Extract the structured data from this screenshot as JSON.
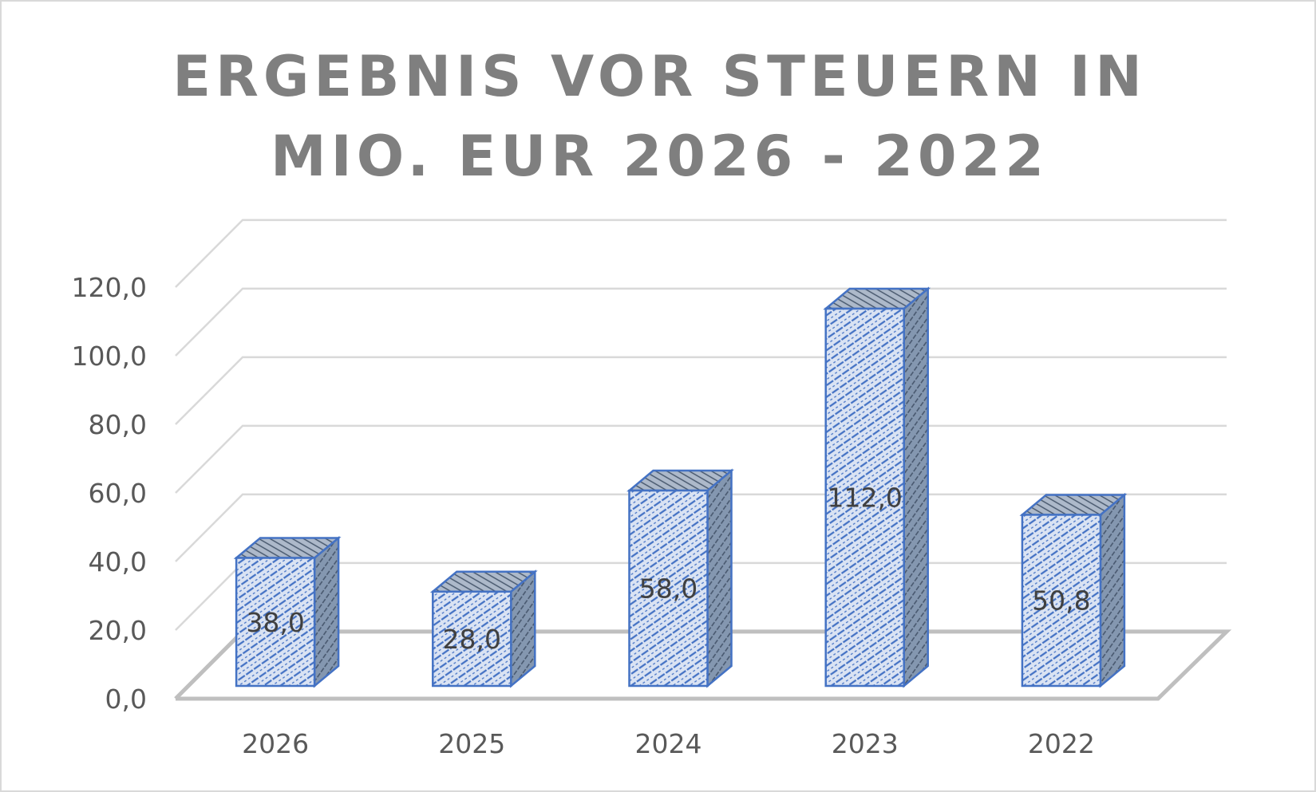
{
  "chart_data": {
    "type": "bar",
    "title": "ERGEBNIS VOR STEUERN IN MIO. EUR 2026 - 2022",
    "title_lines": [
      "ERGEBNIS VOR STEUERN IN",
      "MIO. EUR 2026 - 2022"
    ],
    "categories": [
      "2026",
      "2025",
      "2024",
      "2023",
      "2022"
    ],
    "values": [
      38.0,
      28.0,
      58.0,
      112.0,
      50.8
    ],
    "value_labels": [
      "38,0",
      "28,0",
      "58,0",
      "112,0",
      "50,8"
    ],
    "yticks": [
      "0,0",
      "20,0",
      "40,0",
      "60,0",
      "80,0",
      "100,0",
      "120,0"
    ],
    "ylim": [
      0,
      120
    ],
    "grid": true,
    "legend": "none",
    "style": "3d-column",
    "colors": {
      "bar_front": "#dae3f3",
      "bar_hatch": "#4472c4",
      "bar_outline": "#4472c4",
      "bar_side": "#8497b0",
      "bar_top": "#adb9ca",
      "grid": "#d9d9d9",
      "floor": "#bfbfbf",
      "title": "#7f7f7f",
      "axis_text": "#595959"
    }
  }
}
